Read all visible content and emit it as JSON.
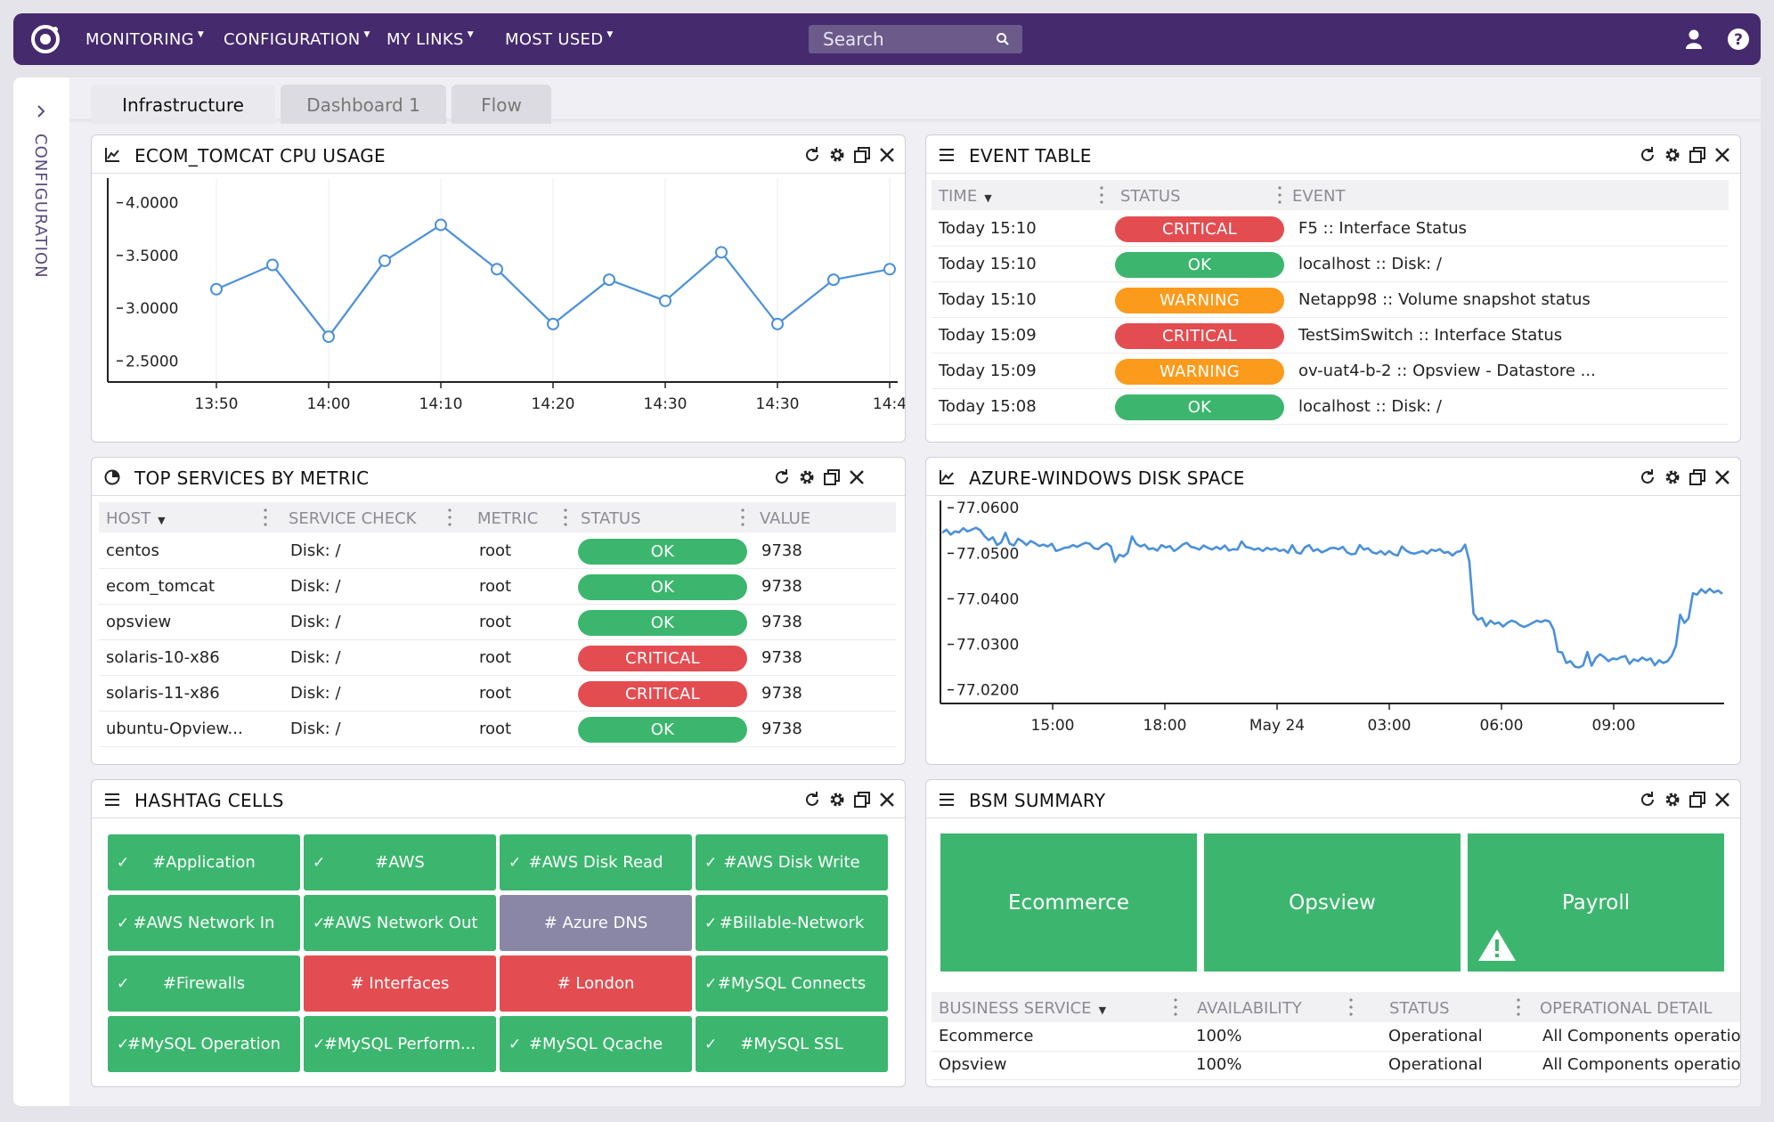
{
  "nav": {
    "items": [
      "MONITORING",
      "CONFIGURATION",
      "MY LINKS",
      "MOST USED"
    ],
    "search_placeholder": "Search"
  },
  "rail": {
    "label": "CONFIGURATION"
  },
  "tabs": [
    "Infrastructure",
    "Dashboard 1",
    "Flow"
  ],
  "cpu_panel": {
    "title": "ECOM_TOMCAT CPU USAGE"
  },
  "event_panel": {
    "title": "EVENT TABLE",
    "columns": [
      "TIME",
      "STATUS",
      "EVENT"
    ],
    "rows": [
      {
        "time": "Today 15:10",
        "status": "CRITICAL",
        "event": "F5 :: Interface Status"
      },
      {
        "time": "Today 15:10",
        "status": "OK",
        "event": "localhost :: Disk: /"
      },
      {
        "time": "Today 15:10",
        "status": "WARNING",
        "event": "Netapp98 :: Volume snapshot status"
      },
      {
        "time": "Today 15:09",
        "status": "CRITICAL",
        "event": "TestSimSwitch :: Interface Status"
      },
      {
        "time": "Today 15:09",
        "status": "WARNING",
        "event": "ov-uat4-b-2 :: Opsview - Datastore ..."
      },
      {
        "time": "Today 15:08",
        "status": "OK",
        "event": "localhost :: Disk: /"
      }
    ]
  },
  "services_panel": {
    "title": "TOP SERVICES BY METRIC",
    "columns": [
      "HOST",
      "SERVICE CHECK",
      "METRIC",
      "STATUS",
      "VALUE"
    ],
    "rows": [
      {
        "host": "centos",
        "check": "Disk: /",
        "metric": "root",
        "status": "OK",
        "value": "9738"
      },
      {
        "host": "ecom_tomcat",
        "check": "Disk: /",
        "metric": "root",
        "status": "OK",
        "value": "9738"
      },
      {
        "host": "opsview",
        "check": "Disk: /",
        "metric": "root",
        "status": "OK",
        "value": "9738"
      },
      {
        "host": "solaris-10-x86",
        "check": "Disk: /",
        "metric": "root",
        "status": "CRITICAL",
        "value": "9738"
      },
      {
        "host": "solaris-11-x86",
        "check": "Disk: /",
        "metric": "root",
        "status": "CRITICAL",
        "value": "9738"
      },
      {
        "host": "ubuntu-Opview...",
        "check": "Disk: /",
        "metric": "root",
        "status": "OK",
        "value": "9738"
      }
    ]
  },
  "disk_panel": {
    "title": "AZURE-WINDOWS DISK SPACE"
  },
  "hashtag_panel": {
    "title": "HASHTAG CELLS",
    "cells": [
      {
        "label": "#Application",
        "state": "ok"
      },
      {
        "label": "#AWS",
        "state": "ok"
      },
      {
        "label": "#AWS Disk Read",
        "state": "ok"
      },
      {
        "label": "#AWS Disk Write",
        "state": "ok"
      },
      {
        "label": "#AWS Network In",
        "state": "ok"
      },
      {
        "label": "#AWS Network Out",
        "state": "ok"
      },
      {
        "label": "# Azure DNS",
        "state": "unknown"
      },
      {
        "label": "#Billable-Network",
        "state": "ok"
      },
      {
        "label": "#Firewalls",
        "state": "ok"
      },
      {
        "label": "# Interfaces",
        "state": "critical"
      },
      {
        "label": "# London",
        "state": "critical"
      },
      {
        "label": "#MySQL Connects",
        "state": "ok"
      },
      {
        "label": "#MySQL Operation",
        "state": "ok"
      },
      {
        "label": "#MySQL Perform...",
        "state": "ok"
      },
      {
        "label": "#MySQL Qcache",
        "state": "ok"
      },
      {
        "label": "#MySQL SSL",
        "state": "ok"
      }
    ]
  },
  "bsm_panel": {
    "title": "BSM SUMMARY",
    "tiles": [
      {
        "label": "Ecommerce",
        "warning": false
      },
      {
        "label": "Opsview",
        "warning": false
      },
      {
        "label": "Payroll",
        "warning": true
      }
    ],
    "columns": [
      "BUSINESS SERVICE",
      "AVAILABILITY",
      "STATUS",
      "OPERATIONAL DETAIL"
    ],
    "rows": [
      {
        "service": "Ecommerce",
        "availability": "100%",
        "status": "Operational",
        "detail": "All Components operation"
      },
      {
        "service": "Opsview",
        "availability": "100%",
        "status": "Operational",
        "detail": "All Components operation"
      }
    ]
  },
  "colors": {
    "brand": "#452a6d",
    "ok": "#3cb66e",
    "critical": "#e34d51",
    "warning": "#fb9a1b",
    "unknown": "#8a87a6",
    "line": "#4a90d9"
  },
  "chart_data": [
    {
      "type": "line",
      "x": [
        "13:50",
        "13:55",
        "14:00",
        "14:05",
        "14:10",
        "14:15",
        "14:20",
        "14:25",
        "14:30",
        "14:35",
        "14:40",
        "14:45",
        "14:50"
      ],
      "values": [
        3.18,
        3.41,
        2.73,
        3.45,
        3.79,
        3.37,
        2.85,
        3.27,
        3.07,
        3.53,
        2.85,
        3.27,
        3.37
      ],
      "x_ticks": [
        "13:50",
        "14:00",
        "14:10",
        "14:20",
        "14:30",
        "14:30",
        "14:4"
      ],
      "y_ticks": [
        "4.0000",
        "3.5000",
        "3.0000",
        "2.5000"
      ],
      "ylim": [
        2.3,
        4.2
      ],
      "grid": true
    },
    {
      "type": "line",
      "x_ticks": [
        "15:00",
        "18:00",
        "May 24",
        "03:00",
        "06:00",
        "09:00"
      ],
      "y_ticks": [
        "77.0600",
        "77.0500",
        "77.0400",
        "77.0300",
        "77.0200"
      ],
      "ylim": [
        77.017,
        77.062
      ],
      "grid": false,
      "values": [
        77.0545,
        77.0552,
        77.0541,
        77.0548,
        77.0546,
        77.0555,
        77.0548,
        77.0552,
        77.0556,
        77.0551,
        77.0538,
        77.0529,
        77.0535,
        77.0518,
        77.0524,
        77.0545,
        77.0521,
        77.0517,
        77.0532,
        77.0526,
        77.0518,
        77.0527,
        77.0522,
        77.0516,
        77.0519,
        77.0515,
        77.0521,
        77.0505,
        77.0508,
        77.0512,
        77.0513,
        77.0518,
        77.0514,
        77.0519,
        77.0523,
        77.0521,
        77.0511,
        77.0509,
        77.0517,
        77.0522,
        77.0515,
        77.0481,
        77.0497,
        77.0493,
        77.0501,
        77.0537,
        77.0521,
        77.0515,
        77.0519,
        77.0509,
        77.0511,
        77.0506,
        77.0518,
        77.0513,
        77.0516,
        77.0505,
        77.0511,
        77.0519,
        77.0523,
        77.0514,
        77.0512,
        77.0508,
        77.0517,
        77.0512,
        77.0508,
        77.0514,
        77.0509,
        77.0517,
        77.0506,
        77.0509,
        77.0508,
        77.0526,
        77.0514,
        77.0512,
        77.0508,
        77.0511,
        77.0505,
        77.0512,
        77.0508,
        77.0511,
        77.0505,
        77.0508,
        77.0501,
        77.0518,
        77.0502,
        77.0499,
        77.0513,
        77.0518,
        77.0505,
        77.0509,
        77.0502,
        77.0506,
        77.0511,
        77.0512,
        77.0509,
        77.0514,
        77.0502,
        77.0498,
        77.0499,
        77.0518,
        77.0508,
        77.0511,
        77.0502,
        77.0499,
        77.0505,
        77.0497,
        77.0505,
        77.0498,
        77.0495,
        77.0515,
        77.0506,
        77.0501,
        77.0499,
        77.0502,
        77.0505,
        77.0499,
        77.0508,
        77.0505,
        77.0509,
        77.0501,
        77.0503,
        77.0495,
        77.0503,
        77.0505,
        77.0519,
        77.0482,
        77.0368,
        77.0354,
        77.0358,
        77.034,
        77.0352,
        77.0345,
        77.0348,
        77.0339,
        77.0347,
        77.0352,
        77.0349,
        77.0342,
        77.0338,
        77.0342,
        77.0347,
        77.0352,
        77.0349,
        77.0353,
        77.035,
        77.0332,
        77.0284,
        77.0282,
        77.0259,
        77.0263,
        77.0251,
        77.0249,
        77.0254,
        77.0283,
        77.0253,
        77.027,
        77.0278,
        77.0272,
        77.0263,
        77.0269,
        77.0267,
        77.0272,
        77.0274,
        77.0257,
        77.0267,
        77.0263,
        77.0271,
        77.0265,
        77.0269,
        77.0254,
        77.0265,
        77.0259,
        77.0263,
        77.0275,
        77.0297,
        77.0365,
        77.0347,
        77.0357,
        77.0412,
        77.0409,
        77.0421,
        77.0413,
        77.0422,
        77.0414,
        77.0418,
        77.0411
      ]
    }
  ]
}
